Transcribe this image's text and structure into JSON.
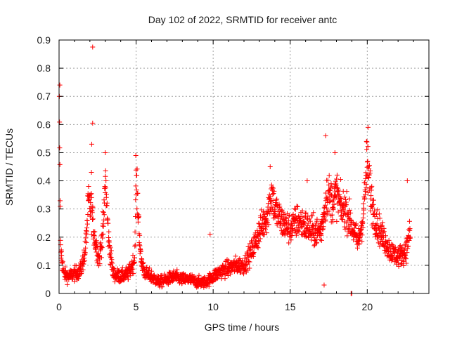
{
  "chart_data": {
    "type": "scatter",
    "title": "Day 102 of 2022, SRMTID for receiver antc",
    "xlabel": "GPS time / hours",
    "ylabel": "SRMTID / TECUs",
    "xlim": [
      0,
      24
    ],
    "ylim": [
      0,
      0.9
    ],
    "x_ticks": [
      0,
      5,
      10,
      15,
      20
    ],
    "y_ticks": [
      0,
      0.1,
      0.2,
      0.3,
      0.4,
      0.5,
      0.6,
      0.7,
      0.8,
      0.9
    ],
    "x_tick_labels": [
      "0",
      "5",
      "10",
      "15",
      "20"
    ],
    "y_tick_labels": [
      "0",
      "0.1",
      "0.2",
      "0.3",
      "0.4",
      "0.5",
      "0.6",
      "0.7",
      "0.8",
      "0.9"
    ],
    "grid": true,
    "marker": "+",
    "series": [
      {
        "name": "SRMTID",
        "color": "#ff0000",
        "profile": [
          [
            0.0,
            0.72
          ],
          [
            0.1,
            0.16
          ],
          [
            0.3,
            0.07
          ],
          [
            0.6,
            0.06
          ],
          [
            1.0,
            0.07
          ],
          [
            1.4,
            0.08
          ],
          [
            1.7,
            0.15
          ],
          [
            1.9,
            0.32
          ],
          [
            2.1,
            0.3
          ],
          [
            2.3,
            0.2
          ],
          [
            2.6,
            0.12
          ],
          [
            2.9,
            0.25
          ],
          [
            3.0,
            0.42
          ],
          [
            3.2,
            0.2
          ],
          [
            3.5,
            0.07
          ],
          [
            4.0,
            0.06
          ],
          [
            4.5,
            0.07
          ],
          [
            4.9,
            0.12
          ],
          [
            5.0,
            0.4
          ],
          [
            5.15,
            0.28
          ],
          [
            5.3,
            0.12
          ],
          [
            5.6,
            0.07
          ],
          [
            6.0,
            0.06
          ],
          [
            6.5,
            0.04
          ],
          [
            7.0,
            0.05
          ],
          [
            7.5,
            0.06
          ],
          [
            8.0,
            0.05
          ],
          [
            8.5,
            0.05
          ],
          [
            9.0,
            0.04
          ],
          [
            9.5,
            0.04
          ],
          [
            10.0,
            0.06
          ],
          [
            10.5,
            0.08
          ],
          [
            11.0,
            0.09
          ],
          [
            11.5,
            0.1
          ],
          [
            12.0,
            0.1
          ],
          [
            12.5,
            0.15
          ],
          [
            13.0,
            0.22
          ],
          [
            13.5,
            0.28
          ],
          [
            13.8,
            0.36
          ],
          [
            14.0,
            0.3
          ],
          [
            14.5,
            0.25
          ],
          [
            15.0,
            0.23
          ],
          [
            15.5,
            0.26
          ],
          [
            16.0,
            0.24
          ],
          [
            16.5,
            0.22
          ],
          [
            17.0,
            0.22
          ],
          [
            17.4,
            0.36
          ],
          [
            17.8,
            0.32
          ],
          [
            18.0,
            0.36
          ],
          [
            18.3,
            0.3
          ],
          [
            18.6,
            0.3
          ],
          [
            19.0,
            0.24
          ],
          [
            19.4,
            0.18
          ],
          [
            19.7,
            0.26
          ],
          [
            20.0,
            0.46
          ],
          [
            20.3,
            0.32
          ],
          [
            20.6,
            0.25
          ],
          [
            21.0,
            0.2
          ],
          [
            21.5,
            0.15
          ],
          [
            22.0,
            0.13
          ],
          [
            22.5,
            0.15
          ],
          [
            22.8,
            0.22
          ]
        ],
        "outliers": [
          [
            2.18,
            0.875
          ],
          [
            2.18,
            0.605
          ],
          [
            2.12,
            0.53
          ],
          [
            2.1,
            0.43
          ],
          [
            3.0,
            0.5
          ],
          [
            4.98,
            0.49
          ],
          [
            17.3,
            0.56
          ],
          [
            20.05,
            0.59
          ],
          [
            19.95,
            0.54
          ],
          [
            17.2,
            0.03
          ],
          [
            18.95,
            0.0
          ],
          [
            19.0,
            0.0
          ],
          [
            0.05,
            0.74
          ],
          [
            0.02,
            0.7
          ],
          [
            9.8,
            0.21
          ],
          [
            13.7,
            0.45
          ],
          [
            16.1,
            0.4
          ],
          [
            17.9,
            0.5
          ],
          [
            22.6,
            0.4
          ]
        ]
      }
    ]
  }
}
